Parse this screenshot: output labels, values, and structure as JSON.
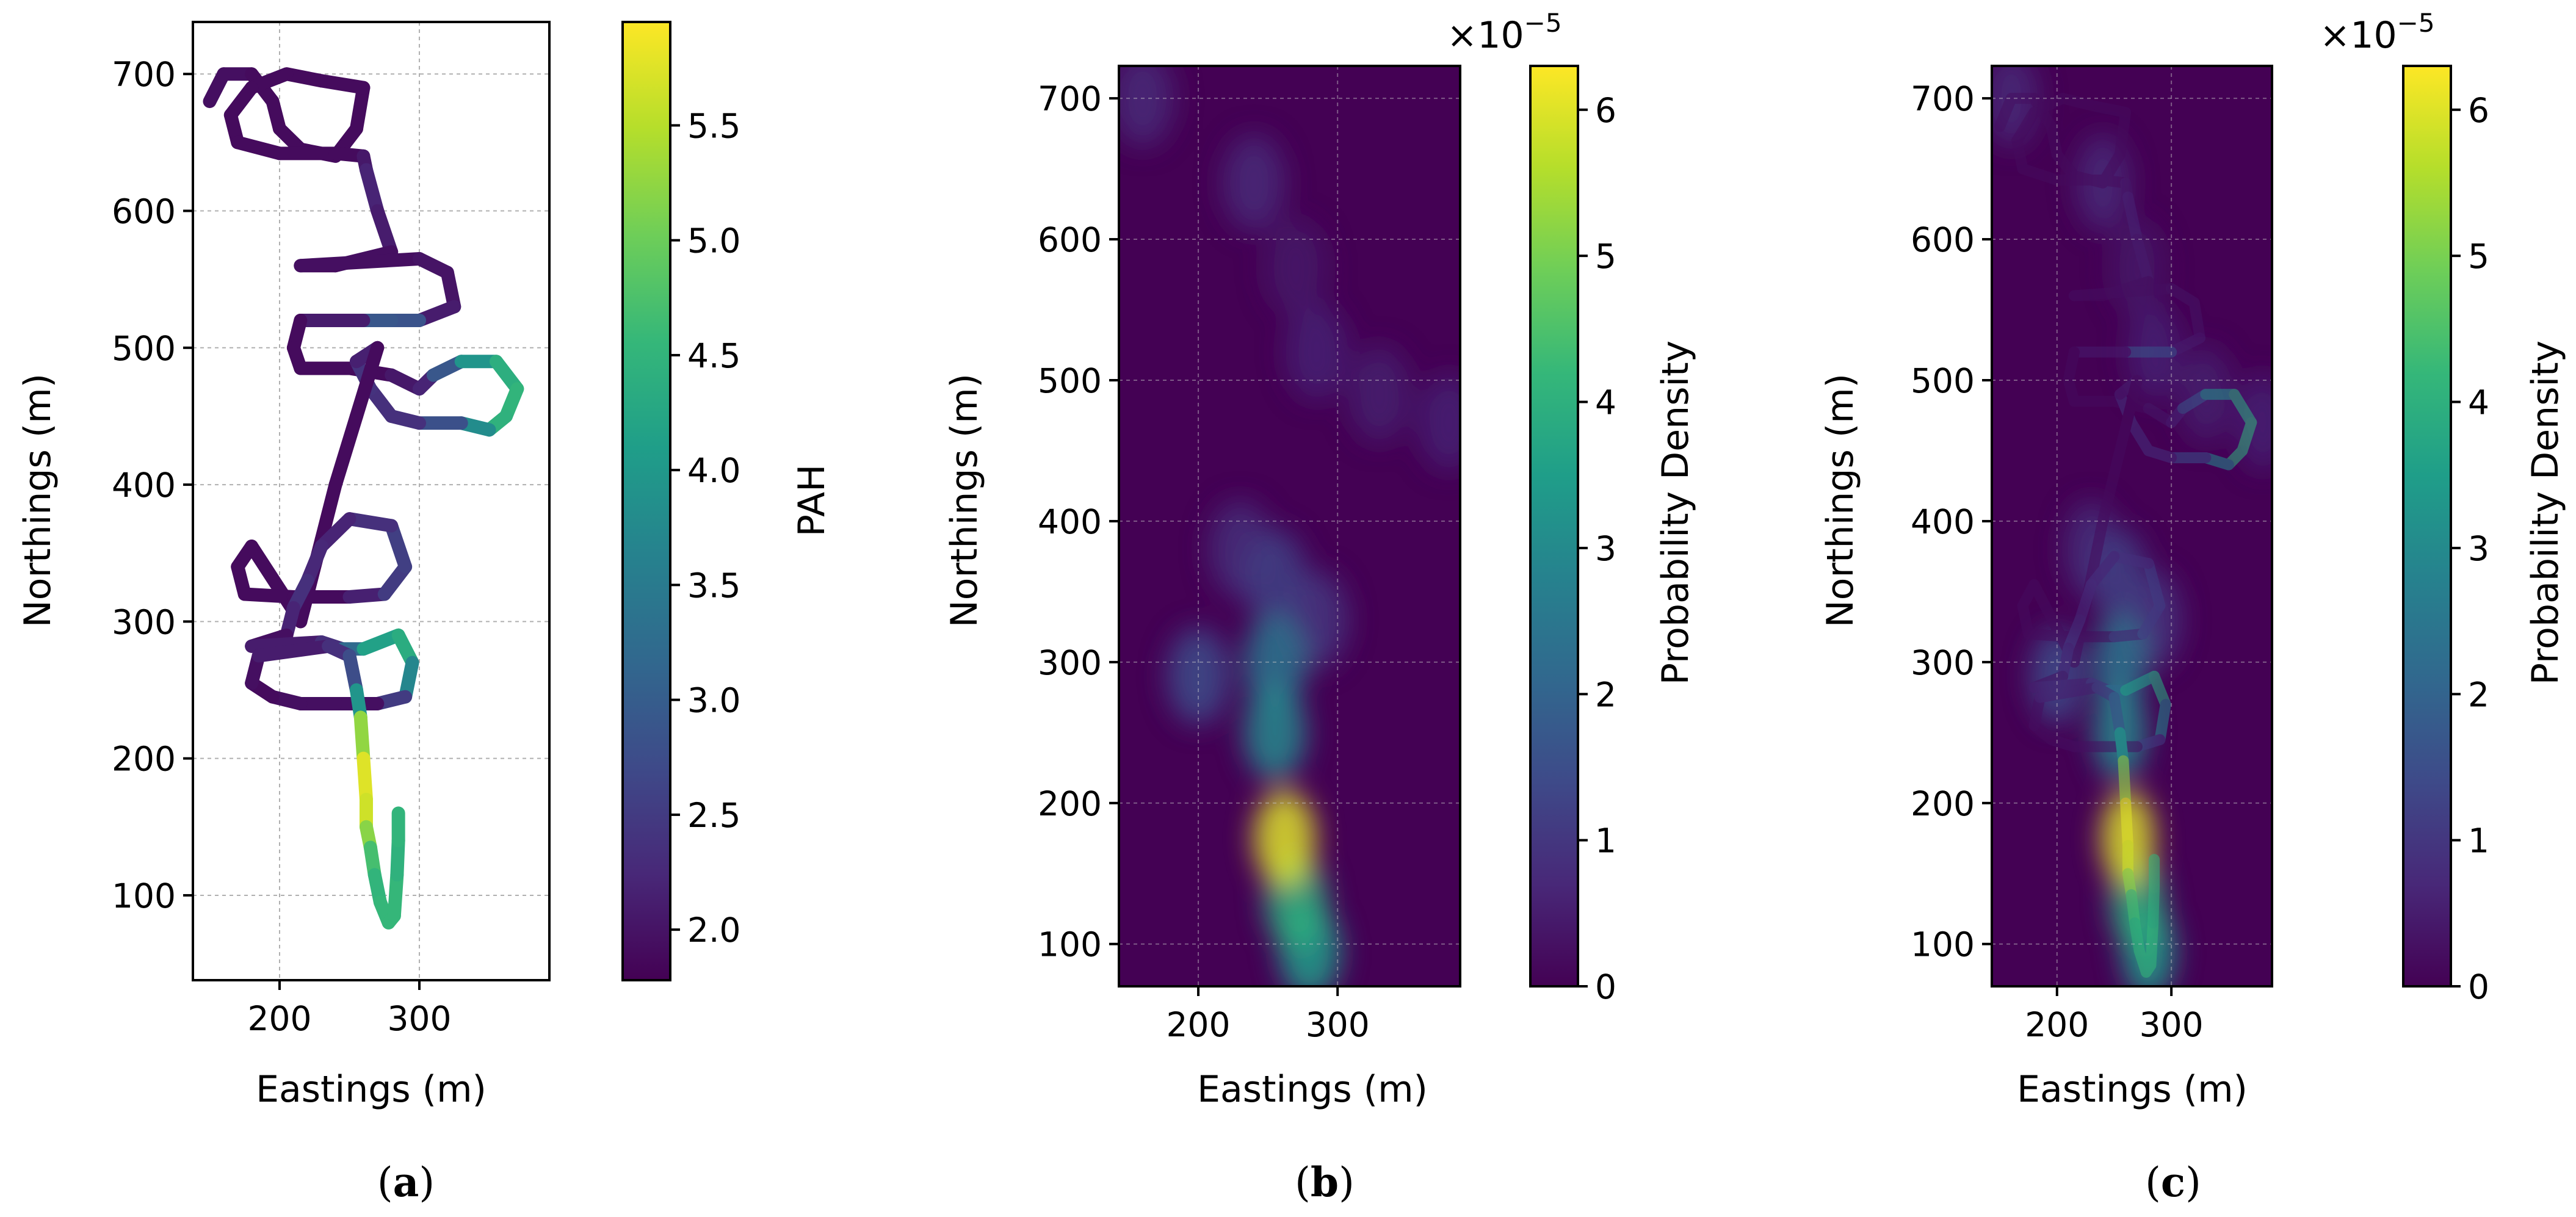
{
  "colormap": "viridis",
  "colors": {
    "viridis_stops": [
      "#440154",
      "#482878",
      "#3e4a89",
      "#31688e",
      "#26828e",
      "#1f9e89",
      "#35b779",
      "#6ece58",
      "#b5de2b",
      "#fde725"
    ]
  },
  "chart_data": [
    {
      "panel_label": "a",
      "type": "scatter",
      "xlabel": "Eastings (m)",
      "ylabel": "Northings (m)",
      "xlim": [
        138,
        393
      ],
      "ylim": [
        38,
        738
      ],
      "xticks": [
        "200",
        "300"
      ],
      "yticks": [
        "100",
        "200",
        "300",
        "400",
        "500",
        "600",
        "700"
      ],
      "grid": true,
      "colorbar": {
        "label": "PAH",
        "range": [
          1.78,
          5.95
        ],
        "ticks": [
          "2.0",
          "2.5",
          "3.0",
          "3.5",
          "4.0",
          "4.5",
          "5.0",
          "5.5"
        ]
      },
      "track": [
        [
          150,
          680,
          1.9
        ],
        [
          160,
          700,
          2.0
        ],
        [
          180,
          700,
          1.9
        ],
        [
          195,
          680,
          1.9
        ],
        [
          200,
          660,
          1.9
        ],
        [
          215,
          645,
          1.9
        ],
        [
          240,
          640,
          1.9
        ],
        [
          255,
          660,
          1.9
        ],
        [
          260,
          690,
          1.9
        ],
        [
          230,
          695,
          1.9
        ],
        [
          205,
          700,
          1.9
        ],
        [
          180,
          690,
          1.9
        ],
        [
          165,
          670,
          1.9
        ],
        [
          170,
          650,
          1.9
        ],
        [
          200,
          642,
          1.9
        ],
        [
          240,
          642,
          1.9
        ],
        [
          260,
          640,
          1.9
        ],
        [
          262,
          630,
          2.2
        ],
        [
          270,
          600,
          2.2
        ],
        [
          280,
          570,
          2.0
        ],
        [
          240,
          560,
          1.9
        ],
        [
          215,
          560,
          1.9
        ],
        [
          300,
          565,
          2.0
        ],
        [
          320,
          555,
          2.0
        ],
        [
          325,
          530,
          2.0
        ],
        [
          300,
          520,
          2.2
        ],
        [
          280,
          520,
          3.5
        ],
        [
          260,
          520,
          2.3
        ],
        [
          215,
          520,
          1.9
        ],
        [
          210,
          500,
          1.9
        ],
        [
          215,
          485,
          1.9
        ],
        [
          250,
          485,
          1.9
        ],
        [
          280,
          480,
          1.9
        ],
        [
          300,
          470,
          2.2
        ],
        [
          310,
          480,
          2.2
        ],
        [
          330,
          490,
          3.6
        ],
        [
          355,
          490,
          4.3
        ],
        [
          370,
          470,
          4.5
        ],
        [
          362,
          450,
          4.5
        ],
        [
          350,
          440,
          4.4
        ],
        [
          330,
          445,
          3.2
        ],
        [
          300,
          445,
          2.4
        ],
        [
          280,
          450,
          2.3
        ],
        [
          265,
          470,
          2.4
        ],
        [
          255,
          490,
          2.4
        ],
        [
          270,
          500,
          1.9
        ],
        [
          255,
          450,
          1.9
        ],
        [
          240,
          400,
          1.9
        ],
        [
          230,
          360,
          1.9
        ],
        [
          220,
          320,
          1.9
        ],
        [
          215,
          300,
          1.9
        ],
        [
          180,
          355,
          1.9
        ],
        [
          170,
          340,
          1.9
        ],
        [
          175,
          320,
          1.9
        ],
        [
          210,
          318,
          1.9
        ],
        [
          250,
          318,
          1.9
        ],
        [
          275,
          320,
          2.4
        ],
        [
          290,
          340,
          2.6
        ],
        [
          280,
          370,
          2.5
        ],
        [
          250,
          375,
          2.2
        ],
        [
          230,
          355,
          2.2
        ],
        [
          220,
          330,
          2.3
        ],
        [
          210,
          310,
          2.4
        ],
        [
          205,
          290,
          2.0
        ],
        [
          180,
          282,
          1.9
        ],
        [
          230,
          285,
          2.3
        ],
        [
          245,
          280,
          2.4
        ],
        [
          260,
          280,
          4.0
        ],
        [
          285,
          290,
          4.3
        ],
        [
          295,
          270,
          4.4
        ],
        [
          290,
          245,
          3.0
        ],
        [
          270,
          240,
          2.0
        ],
        [
          240,
          240,
          1.9
        ],
        [
          215,
          240,
          2.0
        ],
        [
          195,
          245,
          1.9
        ],
        [
          180,
          255,
          1.9
        ],
        [
          185,
          275,
          2.0
        ],
        [
          235,
          282,
          2.2
        ],
        [
          250,
          275,
          2.5
        ],
        [
          255,
          250,
          3.0
        ],
        [
          258,
          230,
          4.9
        ],
        [
          260,
          200,
          5.6
        ],
        [
          262,
          170,
          5.9
        ],
        [
          262,
          150,
          5.4
        ],
        [
          265,
          135,
          5.0
        ],
        [
          268,
          115,
          4.4
        ],
        [
          272,
          95,
          4.6
        ],
        [
          278,
          80,
          4.5
        ],
        [
          282,
          85,
          4.6
        ],
        [
          284,
          115,
          4.5
        ],
        [
          285,
          140,
          4.4
        ],
        [
          285,
          160,
          4.6
        ]
      ]
    },
    {
      "panel_label": "b",
      "type": "heatmap",
      "xlabel": "Eastings (m)",
      "ylabel": "Northings (m)",
      "xlim": [
        143,
        388
      ],
      "ylim": [
        70,
        723
      ],
      "xticks": [
        "200",
        "300"
      ],
      "yticks": [
        "100",
        "200",
        "300",
        "400",
        "500",
        "600",
        "700"
      ],
      "grid": true,
      "scale_label": "×10",
      "scale_exponent": "−5",
      "colorbar": {
        "label": "Probability Density",
        "range": [
          0,
          6.3
        ],
        "ticks": [
          "0",
          "1",
          "2",
          "3",
          "4",
          "5",
          "6"
        ]
      },
      "hotspots": [
        [
          262,
          175,
          6.0
        ],
        [
          270,
          130,
          4.0
        ],
        [
          280,
          95,
          3.5
        ],
        [
          255,
          250,
          3.0
        ],
        [
          255,
          300,
          2.5
        ],
        [
          200,
          290,
          1.5
        ],
        [
          255,
          360,
          1.2
        ],
        [
          285,
          330,
          1.0
        ],
        [
          230,
          380,
          0.8
        ],
        [
          240,
          640,
          0.7
        ],
        [
          160,
          700,
          0.7
        ],
        [
          285,
          520,
          0.6
        ],
        [
          330,
          490,
          0.5
        ],
        [
          380,
          470,
          0.6
        ],
        [
          270,
          580,
          0.4
        ]
      ]
    },
    {
      "panel_label": "c",
      "type": "heatmap",
      "xlabel": "Eastings (m)",
      "ylabel": "Northings (m)",
      "xlim": [
        143,
        388
      ],
      "ylim": [
        70,
        723
      ],
      "xticks": [
        "200",
        "300"
      ],
      "yticks": [
        "100",
        "200",
        "300",
        "400",
        "500",
        "600",
        "700"
      ],
      "grid": true,
      "scale_label": "×10",
      "scale_exponent": "−5",
      "colorbar": {
        "label": "Probability Density",
        "range": [
          0,
          6.3
        ],
        "ticks": [
          "0",
          "1",
          "2",
          "3",
          "4",
          "5",
          "6"
        ]
      },
      "hotspots": [
        [
          262,
          175,
          6.0
        ],
        [
          270,
          130,
          4.0
        ],
        [
          280,
          95,
          3.5
        ],
        [
          255,
          250,
          3.0
        ],
        [
          255,
          300,
          2.5
        ],
        [
          200,
          290,
          1.5
        ],
        [
          255,
          360,
          1.2
        ],
        [
          285,
          330,
          1.0
        ],
        [
          230,
          380,
          0.8
        ],
        [
          240,
          640,
          0.7
        ],
        [
          160,
          700,
          0.7
        ],
        [
          285,
          520,
          0.6
        ],
        [
          330,
          490,
          0.5
        ],
        [
          380,
          470,
          0.6
        ],
        [
          270,
          580,
          0.4
        ]
      ],
      "overlay": "track from panel a"
    }
  ]
}
